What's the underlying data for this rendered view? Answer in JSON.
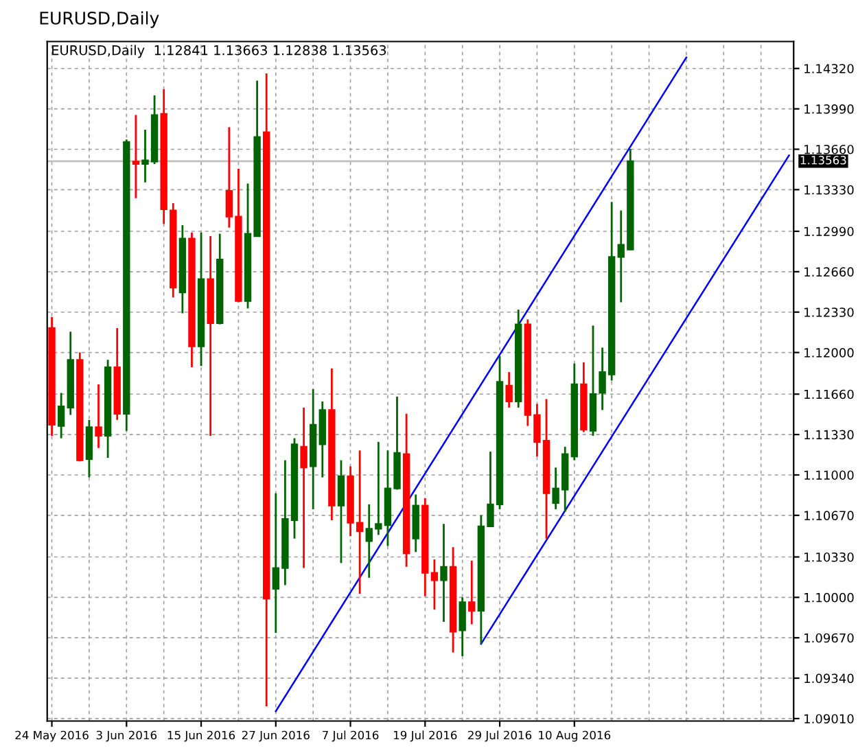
{
  "chart_data": {
    "type": "candlestick",
    "title": "EURUSD,Daily",
    "subtitle": "EURUSD,Daily  1.12841 1.13663 1.12838 1.13563",
    "categories": [
      "24 May 2016",
      null,
      null,
      null,
      null,
      null,
      null,
      null,
      "3 Jun 2016",
      null,
      null,
      null,
      null,
      null,
      null,
      null,
      "15 Jun 2016",
      null,
      null,
      null,
      null,
      null,
      null,
      null,
      "27 Jun 2016",
      null,
      null,
      null,
      null,
      null,
      null,
      null,
      "7 Jul 2016",
      null,
      null,
      null,
      null,
      null,
      null,
      null,
      "19 Jul 2016",
      null,
      null,
      null,
      null,
      null,
      null,
      null,
      "29 Jul 2016",
      null,
      null,
      null,
      null,
      null,
      null,
      null,
      "10 Aug 2016",
      null,
      null,
      null,
      null,
      null,
      null,
      null,
      null,
      null,
      null,
      null,
      null,
      null,
      null,
      null,
      null,
      null,
      null,
      null,
      null,
      null,
      null,
      null
    ],
    "ohlc": [
      [
        1.122,
        1.1229,
        1.1132,
        1.1141
      ],
      [
        1.114,
        1.1167,
        1.113,
        1.1156
      ],
      [
        1.1155,
        1.1217,
        1.1149,
        1.1194
      ],
      [
        1.1194,
        1.12,
        1.1111,
        1.1112
      ],
      [
        1.1113,
        1.1145,
        1.1098,
        1.1139
      ],
      [
        1.1139,
        1.1174,
        1.1122,
        1.1132
      ],
      [
        1.1132,
        1.1194,
        1.1114,
        1.1188
      ],
      [
        1.1188,
        1.122,
        1.1145,
        1.115
      ],
      [
        1.115,
        1.1374,
        1.1136,
        1.1372
      ],
      [
        1.1356,
        1.1394,
        1.1326,
        1.1354
      ],
      [
        1.1354,
        1.1382,
        1.1339,
        1.1357
      ],
      [
        1.1356,
        1.141,
        1.1354,
        1.1394
      ],
      [
        1.1395,
        1.1415,
        1.1305,
        1.1317
      ],
      [
        1.1316,
        1.1322,
        1.1245,
        1.1253
      ],
      [
        1.1249,
        1.1304,
        1.1232,
        1.1293
      ],
      [
        1.1293,
        1.1298,
        1.1188,
        1.1205
      ],
      [
        1.1205,
        1.1298,
        1.1189,
        1.126
      ],
      [
        1.126,
        1.1295,
        1.1132,
        1.1224
      ],
      [
        1.1224,
        1.1297,
        1.1223,
        1.1276
      ],
      [
        1.1332,
        1.1384,
        1.1302,
        1.1311
      ],
      [
        1.1311,
        1.135,
        1.1241,
        1.1242
      ],
      [
        1.1242,
        1.1338,
        1.1236,
        1.1297
      ],
      [
        1.1295,
        1.1422,
        1.1295,
        1.1376
      ],
      [
        1.138,
        1.1428,
        1.0911,
        1.0999
      ],
      [
        1.1007,
        1.1085,
        1.0971,
        1.1024
      ],
      [
        1.1024,
        1.1112,
        1.101,
        1.1064
      ],
      [
        1.1063,
        1.113,
        1.1048,
        1.1125
      ],
      [
        1.1123,
        1.1155,
        1.1024,
        1.1106
      ],
      [
        1.1107,
        1.117,
        1.1072,
        1.1141
      ],
      [
        1.1125,
        1.116,
        1.1098,
        1.1153
      ],
      [
        1.1153,
        1.1187,
        1.1063,
        1.1075
      ],
      [
        1.1075,
        1.1112,
        1.1028,
        1.1099
      ],
      [
        1.1099,
        1.1107,
        1.105,
        1.1061
      ],
      [
        1.1061,
        1.112,
        1.1003,
        1.1054
      ],
      [
        1.1046,
        1.1076,
        1.1016,
        1.1056
      ],
      [
        1.1056,
        1.1127,
        1.1051,
        1.106
      ],
      [
        1.1059,
        1.112,
        1.1042,
        1.1089
      ],
      [
        1.1089,
        1.1164,
        1.1088,
        1.1118
      ],
      [
        1.1117,
        1.115,
        1.1025,
        1.1036
      ],
      [
        1.1048,
        1.1084,
        1.1037,
        1.1075
      ],
      [
        1.1075,
        1.1081,
        1.1001,
        1.102
      ],
      [
        1.102,
        1.1031,
        1.099,
        1.1014
      ],
      [
        1.1014,
        1.106,
        1.098,
        1.1025
      ],
      [
        1.1025,
        1.1041,
        1.0955,
        1.0972
      ],
      [
        1.0973,
        1.1,
        1.0952,
        1.0996
      ],
      [
        1.0996,
        1.103,
        1.0978,
        1.0989
      ],
      [
        1.0989,
        1.1067,
        1.0962,
        1.1058
      ],
      [
        1.1058,
        1.1119,
        1.1058,
        1.1076
      ],
      [
        1.1076,
        1.1197,
        1.1072,
        1.1176
      ],
      [
        1.1173,
        1.1184,
        1.1155,
        1.116
      ],
      [
        1.116,
        1.1235,
        1.1155,
        1.1223
      ],
      [
        1.1223,
        1.1227,
        1.114,
        1.1149
      ],
      [
        1.1149,
        1.1158,
        1.1115,
        1.1127
      ],
      [
        1.1128,
        1.1162,
        1.1048,
        1.1085
      ],
      [
        1.1077,
        1.1106,
        1.1072,
        1.1089
      ],
      [
        1.1088,
        1.1123,
        1.107,
        1.1117
      ],
      [
        1.1115,
        1.1191,
        1.1112,
        1.1174
      ],
      [
        1.1174,
        1.1192,
        1.1135,
        1.1137
      ],
      [
        1.1136,
        1.1222,
        1.1132,
        1.1166
      ],
      [
        1.1167,
        1.1204,
        1.1153,
        1.1184
      ],
      [
        1.1182,
        1.1323,
        1.1177,
        1.1278
      ],
      [
        1.1278,
        1.1316,
        1.1241,
        1.1288
      ],
      [
        1.12841,
        1.13663,
        1.12838,
        1.13563
      ],
      null,
      null,
      null,
      null,
      null,
      null,
      null,
      null,
      null,
      null,
      null,
      null,
      null,
      null,
      null,
      null,
      null
    ],
    "colors": [
      "#ff0000",
      "#006400",
      "#006400",
      "#ff0000",
      "#006400",
      "#ff0000",
      "#006400",
      "#ff0000",
      "#006400",
      "#ff0000",
      "#006400",
      "#006400",
      "#ff0000",
      "#ff0000",
      "#006400",
      "#ff0000",
      "#006400",
      "#ff0000",
      "#006400",
      "#ff0000",
      "#ff0000",
      "#006400",
      "#006400",
      "#ff0000",
      "#006400",
      "#006400",
      "#006400",
      "#ff0000",
      "#006400",
      "#006400",
      "#ff0000",
      "#006400",
      "#ff0000",
      "#ff0000",
      "#006400",
      "#006400",
      "#006400",
      "#006400",
      "#ff0000",
      "#006400",
      "#ff0000",
      "#ff0000",
      "#006400",
      "#ff0000",
      "#006400",
      "#ff0000",
      "#006400",
      "#006400",
      "#006400",
      "#ff0000",
      "#006400",
      "#ff0000",
      "#ff0000",
      "#ff0000",
      "#006400",
      "#006400",
      "#006400",
      "#ff0000",
      "#006400",
      "#006400",
      "#006400",
      "#006400",
      "#006400",
      null,
      null,
      null,
      null,
      null,
      null,
      null,
      null,
      null,
      null,
      null,
      null,
      null,
      null,
      null,
      null,
      null
    ],
    "series": [
      {
        "type": "line",
        "color": "#0000ff",
        "values": [
          null,
          null,
          null,
          null,
          null,
          null,
          null,
          null,
          null,
          null,
          null,
          null,
          null,
          null,
          null,
          null,
          null,
          null,
          null,
          null,
          null,
          null,
          null,
          null,
          1.0907,
          null,
          null,
          null,
          null,
          null,
          null,
          null,
          null,
          null,
          null,
          null,
          null,
          null,
          null,
          null,
          null,
          null,
          null,
          null,
          null,
          null,
          null,
          null,
          null,
          null,
          null,
          null,
          null,
          null,
          null,
          null,
          null,
          null,
          null,
          null,
          null,
          null,
          null,
          null,
          null,
          null,
          null,
          null,
          1.1441,
          null,
          null,
          null,
          null,
          null,
          null,
          null,
          null,
          null,
          null,
          null
        ]
      },
      {
        "type": "line",
        "color": "#0000ff",
        "values": [
          null,
          null,
          null,
          null,
          null,
          null,
          null,
          null,
          null,
          null,
          null,
          null,
          null,
          null,
          null,
          null,
          null,
          null,
          null,
          null,
          null,
          null,
          null,
          null,
          null,
          null,
          null,
          null,
          null,
          null,
          null,
          null,
          null,
          null,
          null,
          null,
          null,
          null,
          null,
          null,
          null,
          null,
          null,
          null,
          null,
          null,
          1.0962,
          null,
          null,
          null,
          null,
          null,
          null,
          null,
          null,
          null,
          null,
          null,
          null,
          null,
          null,
          null,
          null,
          null,
          null,
          null,
          null,
          null,
          null,
          null,
          null,
          null,
          null,
          null,
          null,
          null,
          null,
          null,
          null,
          1.1361
        ]
      }
    ],
    "ref_lines": [
      {
        "axis": "y",
        "value": 1.13563,
        "label": "1.13563",
        "color": "#c0c0c0"
      }
    ],
    "ylim": [
      1.0899,
      1.1454
    ],
    "yticks": [
      {
        "value": 1.1432,
        "label": "1.14320"
      },
      {
        "value": 1.1399,
        "label": "1.13990"
      },
      {
        "value": 1.1366,
        "label": "1.13660"
      },
      {
        "value": 1.1333,
        "label": "1.13330"
      },
      {
        "value": 1.1299,
        "label": "1.12990"
      },
      {
        "value": 1.1266,
        "label": "1.12660"
      },
      {
        "value": 1.1233,
        "label": "1.12330"
      },
      {
        "value": 1.12,
        "label": "1.12000"
      },
      {
        "value": 1.1166,
        "label": "1.11660"
      },
      {
        "value": 1.1133,
        "label": "1.11330"
      },
      {
        "value": 1.11,
        "label": "1.11000"
      },
      {
        "value": 1.1067,
        "label": "1.10670"
      },
      {
        "value": 1.1033,
        "label": "1.10330"
      },
      {
        "value": 1.1,
        "label": "1.10000"
      },
      {
        "value": 1.0967,
        "label": "1.09670"
      },
      {
        "value": 1.0934,
        "label": "1.09340"
      },
      {
        "value": 1.0901,
        "label": "1.09010"
      }
    ],
    "grid": true
  }
}
